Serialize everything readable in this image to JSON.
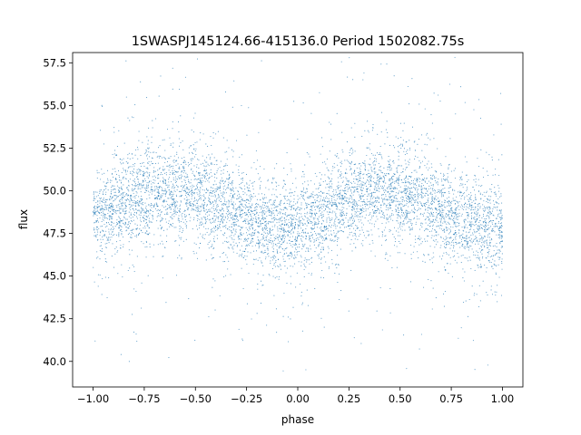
{
  "chart_data": {
    "type": "scatter",
    "title": "1SWASPJ145124.66-415136.0 Period 1502082.75s",
    "xlabel": "phase",
    "ylabel": "flux",
    "xlim": [
      -1.1,
      1.1
    ],
    "ylim": [
      38.5,
      58.1
    ],
    "xticks": [
      -1.0,
      -0.75,
      -0.5,
      -0.25,
      0.0,
      0.25,
      0.5,
      0.75,
      1.0
    ],
    "xtick_labels": [
      "−1.00",
      "−0.75",
      "−0.50",
      "−0.25",
      "0.00",
      "0.25",
      "0.50",
      "0.75",
      "1.00"
    ],
    "yticks": [
      40.0,
      42.5,
      45.0,
      47.5,
      50.0,
      52.5,
      55.0,
      57.5
    ],
    "ytick_labels": [
      "40.0",
      "42.5",
      "45.0",
      "47.5",
      "50.0",
      "52.5",
      "55.0",
      "57.5"
    ],
    "grid": false,
    "legend": "none",
    "point_color": "#1f77b4",
    "series": [
      {
        "x_range": [
          -1.0,
          1.0
        ],
        "y_core_range": [
          45.0,
          52.5
        ],
        "y_full_range": [
          39.4,
          58.0
        ],
        "trend": [
          [
            -1.0,
            48.5
          ],
          [
            -0.875,
            49.2
          ],
          [
            -0.75,
            49.7
          ],
          [
            -0.625,
            50.0
          ],
          [
            -0.5,
            49.8
          ],
          [
            -0.375,
            49.2
          ],
          [
            -0.25,
            48.3
          ],
          [
            -0.125,
            47.8
          ],
          [
            0.0,
            47.9
          ],
          [
            0.125,
            48.6
          ],
          [
            0.25,
            49.5
          ],
          [
            0.375,
            50.0
          ],
          [
            0.5,
            49.8
          ],
          [
            0.625,
            49.3
          ],
          [
            0.75,
            48.5
          ],
          [
            0.875,
            48.0
          ],
          [
            1.0,
            47.9
          ]
        ]
      }
    ]
  }
}
